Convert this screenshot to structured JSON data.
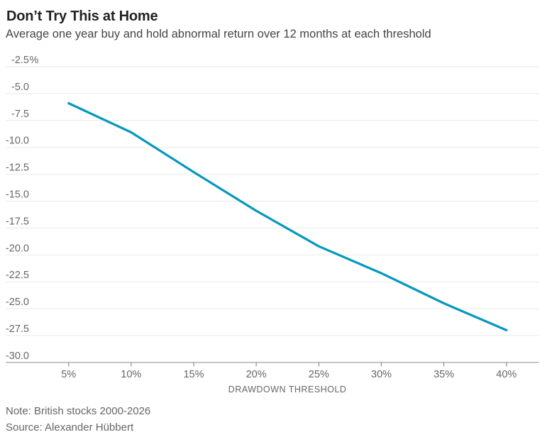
{
  "header": {
    "title": "Don’t Try This at Home",
    "subtitle": "Average one year buy and hold abnormal return over 12 months at each threshold"
  },
  "chart_data": {
    "type": "line",
    "title": "Don’t Try This at Home",
    "subtitle": "Average one year buy and hold abnormal return over 12 months at each threshold",
    "x": [
      5,
      10,
      15,
      20,
      25,
      30,
      35,
      40
    ],
    "x_tick_labels": [
      "5%",
      "10%",
      "15%",
      "20%",
      "25%",
      "30%",
      "35%",
      "40%"
    ],
    "values": [
      -5.9,
      -8.6,
      -12.3,
      -15.9,
      -19.2,
      -21.7,
      -24.5,
      -27.0
    ],
    "xlabel": "DRAWDOWN THRESHOLD",
    "ylabel": "",
    "y_ticks": [
      -2.5,
      -5,
      -7.5,
      -10,
      -12.5,
      -15,
      -17.5,
      -20,
      -22.5,
      -25,
      -27.5,
      -30
    ],
    "y_tick_labels": [
      "-2.5%",
      "-5.0",
      "-7.5",
      "-10.0",
      "-12.5",
      "-15.0",
      "-17.5",
      "-20.0",
      "-22.5",
      "-25.0",
      "-27.5",
      "-30.0"
    ],
    "ylim": [
      -30.0,
      -2.5
    ],
    "xlim_pct": [
      5,
      40
    ],
    "grid": true,
    "legend": "none",
    "line_color": "#0698be",
    "grid_color": "#e9e9e9",
    "axis_color": "#8c8c8c",
    "tick_label_color": "#666666"
  },
  "footer": {
    "note": "Note: British stocks 2000-2026",
    "source": "Source: Alexander Hübbert"
  }
}
